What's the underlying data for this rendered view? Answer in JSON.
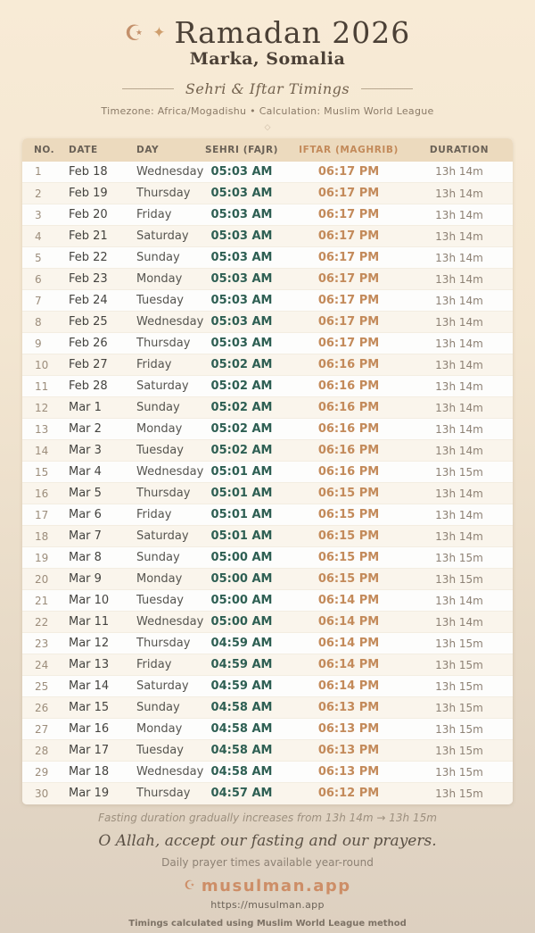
{
  "header": {
    "crescent_icon": "☪",
    "sparkle_icon": "✦",
    "title": "Ramadan 2026",
    "location": "Marka, Somalia",
    "subtitle": "Sehri & Iftar Timings",
    "meta": "Timezone: Africa/Mogadishu • Calculation: Muslim World League",
    "ornament": "◇"
  },
  "table": {
    "columns": [
      "NO.",
      "DATE",
      "DAY",
      "SEHRI (FAJR)",
      "IFTAR (MAGHRIB)",
      "DURATION"
    ],
    "rows": [
      [
        "1",
        "Feb 18",
        "Wednesday",
        "05:03 AM",
        "06:17 PM",
        "13h 14m"
      ],
      [
        "2",
        "Feb 19",
        "Thursday",
        "05:03 AM",
        "06:17 PM",
        "13h 14m"
      ],
      [
        "3",
        "Feb 20",
        "Friday",
        "05:03 AM",
        "06:17 PM",
        "13h 14m"
      ],
      [
        "4",
        "Feb 21",
        "Saturday",
        "05:03 AM",
        "06:17 PM",
        "13h 14m"
      ],
      [
        "5",
        "Feb 22",
        "Sunday",
        "05:03 AM",
        "06:17 PM",
        "13h 14m"
      ],
      [
        "6",
        "Feb 23",
        "Monday",
        "05:03 AM",
        "06:17 PM",
        "13h 14m"
      ],
      [
        "7",
        "Feb 24",
        "Tuesday",
        "05:03 AM",
        "06:17 PM",
        "13h 14m"
      ],
      [
        "8",
        "Feb 25",
        "Wednesday",
        "05:03 AM",
        "06:17 PM",
        "13h 14m"
      ],
      [
        "9",
        "Feb 26",
        "Thursday",
        "05:03 AM",
        "06:17 PM",
        "13h 14m"
      ],
      [
        "10",
        "Feb 27",
        "Friday",
        "05:02 AM",
        "06:16 PM",
        "13h 14m"
      ],
      [
        "11",
        "Feb 28",
        "Saturday",
        "05:02 AM",
        "06:16 PM",
        "13h 14m"
      ],
      [
        "12",
        "Mar 1",
        "Sunday",
        "05:02 AM",
        "06:16 PM",
        "13h 14m"
      ],
      [
        "13",
        "Mar 2",
        "Monday",
        "05:02 AM",
        "06:16 PM",
        "13h 14m"
      ],
      [
        "14",
        "Mar 3",
        "Tuesday",
        "05:02 AM",
        "06:16 PM",
        "13h 14m"
      ],
      [
        "15",
        "Mar 4",
        "Wednesday",
        "05:01 AM",
        "06:16 PM",
        "13h 15m"
      ],
      [
        "16",
        "Mar 5",
        "Thursday",
        "05:01 AM",
        "06:15 PM",
        "13h 14m"
      ],
      [
        "17",
        "Mar 6",
        "Friday",
        "05:01 AM",
        "06:15 PM",
        "13h 14m"
      ],
      [
        "18",
        "Mar 7",
        "Saturday",
        "05:01 AM",
        "06:15 PM",
        "13h 14m"
      ],
      [
        "19",
        "Mar 8",
        "Sunday",
        "05:00 AM",
        "06:15 PM",
        "13h 15m"
      ],
      [
        "20",
        "Mar 9",
        "Monday",
        "05:00 AM",
        "06:15 PM",
        "13h 15m"
      ],
      [
        "21",
        "Mar 10",
        "Tuesday",
        "05:00 AM",
        "06:14 PM",
        "13h 14m"
      ],
      [
        "22",
        "Mar 11",
        "Wednesday",
        "05:00 AM",
        "06:14 PM",
        "13h 14m"
      ],
      [
        "23",
        "Mar 12",
        "Thursday",
        "04:59 AM",
        "06:14 PM",
        "13h 15m"
      ],
      [
        "24",
        "Mar 13",
        "Friday",
        "04:59 AM",
        "06:14 PM",
        "13h 15m"
      ],
      [
        "25",
        "Mar 14",
        "Saturday",
        "04:59 AM",
        "06:14 PM",
        "13h 15m"
      ],
      [
        "26",
        "Mar 15",
        "Sunday",
        "04:58 AM",
        "06:13 PM",
        "13h 15m"
      ],
      [
        "27",
        "Mar 16",
        "Monday",
        "04:58 AM",
        "06:13 PM",
        "13h 15m"
      ],
      [
        "28",
        "Mar 17",
        "Tuesday",
        "04:58 AM",
        "06:13 PM",
        "13h 15m"
      ],
      [
        "29",
        "Mar 18",
        "Wednesday",
        "04:58 AM",
        "06:13 PM",
        "13h 15m"
      ],
      [
        "30",
        "Mar 19",
        "Thursday",
        "04:57 AM",
        "06:12 PM",
        "13h 15m"
      ]
    ]
  },
  "footer": {
    "note": "Fasting duration gradually increases from 13h 14m → 13h 15m",
    "dua": "O Allah, accept our fasting and our prayers.",
    "availability": "Daily prayer times available year-round",
    "brand_icon": "☪",
    "brand": "musulman.app",
    "url": "https://musulman.app",
    "method": "Timings calculated using Muslim World League method"
  },
  "colors": {
    "accent_iftar": "#c38a5a",
    "accent_sehri": "#2e5f53",
    "brand": "#cd8e67",
    "header_bg": "#ecdabe",
    "page_bg_top": "#f8ebd6",
    "page_bg_bottom": "#ddd0c0"
  }
}
